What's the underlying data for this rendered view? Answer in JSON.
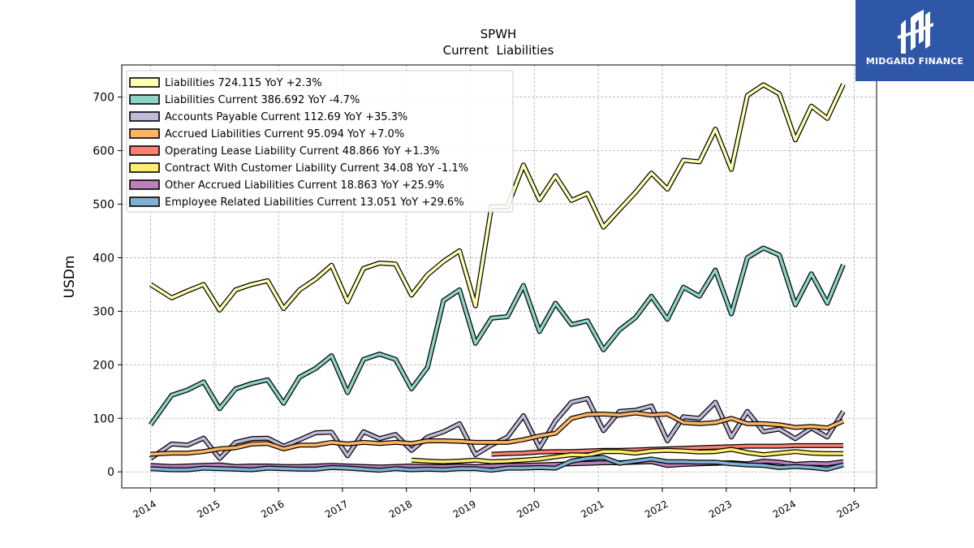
{
  "chart_data": {
    "type": "line",
    "title": "SPWH",
    "subtitle": "Current  Liabilities",
    "ylabel": "USDm",
    "xlabel": "",
    "ylim": [
      -30,
      760
    ],
    "xlim": [
      2013.55,
      2025.35
    ],
    "yticks": [
      0,
      100,
      200,
      300,
      400,
      500,
      600,
      700
    ],
    "xticks": [
      2014,
      2015,
      2016,
      2017,
      2018,
      2019,
      2020,
      2021,
      2022,
      2023,
      2024,
      2025
    ],
    "grid": true,
    "legend_position": "top-left",
    "series": [
      {
        "name": "Liabilities",
        "label": "Liabilities  724.115 YoY +2.3%",
        "color": "#ffffb3",
        "x": [
          2014.0,
          2014.33,
          2014.58,
          2014.83,
          2015.08,
          2015.33,
          2015.58,
          2015.83,
          2016.08,
          2016.33,
          2016.58,
          2016.83,
          2017.08,
          2017.33,
          2017.58,
          2017.83,
          2018.08,
          2018.33,
          2018.58,
          2018.83,
          2019.08,
          2019.33,
          2019.58,
          2019.83,
          2020.08,
          2020.33,
          2020.58,
          2020.83,
          2021.08,
          2021.33,
          2021.58,
          2021.83,
          2022.08,
          2022.33,
          2022.58,
          2022.83,
          2023.08,
          2023.33,
          2023.58,
          2023.83,
          2024.08,
          2024.33,
          2024.58,
          2024.83
        ],
        "y": [
          350,
          325,
          338,
          350,
          302,
          340,
          350,
          357,
          305,
          340,
          360,
          386,
          318,
          380,
          390,
          388,
          330,
          368,
          393,
          413,
          310,
          495,
          495,
          573,
          508,
          553,
          507,
          520,
          457,
          490,
          522,
          558,
          528,
          582,
          579,
          640,
          565,
          703,
          723,
          706,
          620,
          683,
          660,
          724
        ]
      },
      {
        "name": "Liabilities Current",
        "label": "Liabilities Current  386.692 YoY -4.7%",
        "color": "#8dd3c7",
        "x": [
          2014.0,
          2014.33,
          2014.58,
          2014.83,
          2015.08,
          2015.33,
          2015.58,
          2015.83,
          2016.08,
          2016.33,
          2016.58,
          2016.83,
          2017.08,
          2017.33,
          2017.58,
          2017.83,
          2018.08,
          2018.33,
          2018.58,
          2018.83,
          2019.08,
          2019.33,
          2019.58,
          2019.83,
          2020.08,
          2020.33,
          2020.58,
          2020.83,
          2021.08,
          2021.33,
          2021.58,
          2021.83,
          2022.08,
          2022.33,
          2022.58,
          2022.83,
          2023.08,
          2023.33,
          2023.58,
          2023.83,
          2024.08,
          2024.33,
          2024.58,
          2024.83
        ],
        "y": [
          88,
          143,
          153,
          168,
          118,
          155,
          165,
          172,
          128,
          177,
          193,
          217,
          148,
          210,
          220,
          210,
          155,
          195,
          320,
          340,
          240,
          287,
          290,
          348,
          262,
          315,
          275,
          282,
          228,
          265,
          288,
          328,
          285,
          345,
          328,
          377,
          295,
          400,
          418,
          405,
          312,
          370,
          315,
          387
        ]
      },
      {
        "name": "Accounts Payable Current",
        "label": "Accounts Payable Current  112.69 YoY +35.3%",
        "color": "#bebada",
        "x": [
          2014.0,
          2014.33,
          2014.58,
          2014.83,
          2015.08,
          2015.33,
          2015.58,
          2015.83,
          2016.08,
          2016.33,
          2016.58,
          2016.83,
          2017.08,
          2017.33,
          2017.58,
          2017.83,
          2018.08,
          2018.33,
          2018.58,
          2018.83,
          2019.08,
          2019.33,
          2019.58,
          2019.83,
          2020.08,
          2020.33,
          2020.58,
          2020.83,
          2021.08,
          2021.33,
          2021.58,
          2021.83,
          2022.08,
          2022.33,
          2022.58,
          2022.83,
          2023.08,
          2023.33,
          2023.58,
          2023.83,
          2024.08,
          2024.33,
          2024.58,
          2024.83
        ],
        "y": [
          25,
          52,
          50,
          63,
          25,
          55,
          62,
          63,
          48,
          60,
          73,
          74,
          30,
          75,
          62,
          70,
          40,
          65,
          75,
          90,
          32,
          50,
          65,
          105,
          45,
          95,
          130,
          137,
          77,
          113,
          115,
          123,
          58,
          103,
          100,
          130,
          65,
          113,
          75,
          80,
          62,
          82,
          65,
          113
        ]
      },
      {
        "name": "Accrued Liabilities Current",
        "label": "Accrued Liabilities Current  95.094 YoY +7.0%",
        "color": "#fdb462",
        "x": [
          2014.0,
          2014.33,
          2014.58,
          2014.83,
          2015.08,
          2015.33,
          2015.58,
          2015.83,
          2016.08,
          2016.33,
          2016.58,
          2016.83,
          2017.08,
          2017.33,
          2017.58,
          2017.83,
          2018.08,
          2018.33,
          2018.58,
          2018.83,
          2019.08,
          2019.33,
          2019.58,
          2019.83,
          2020.08,
          2020.33,
          2020.58,
          2020.83,
          2021.08,
          2021.33,
          2021.58,
          2021.83,
          2022.08,
          2022.33,
          2022.58,
          2022.83,
          2023.08,
          2023.33,
          2023.58,
          2023.83,
          2024.08,
          2024.33,
          2024.58,
          2024.83
        ],
        "y": [
          33,
          35,
          35,
          38,
          43,
          45,
          52,
          53,
          43,
          50,
          50,
          55,
          52,
          55,
          53,
          55,
          53,
          58,
          58,
          57,
          55,
          55,
          55,
          60,
          67,
          72,
          100,
          107,
          108,
          106,
          110,
          106,
          108,
          92,
          90,
          92,
          100,
          90,
          90,
          88,
          83,
          85,
          82,
          95
        ]
      },
      {
        "name": "Operating Lease Liability Current",
        "label": "Operating Lease Liability Current  48.866 YoY +1.3%",
        "color": "#fb8072",
        "x": [
          2019.33,
          2019.58,
          2019.83,
          2020.08,
          2020.33,
          2020.58,
          2020.83,
          2021.08,
          2021.33,
          2021.58,
          2021.83,
          2022.08,
          2022.33,
          2022.58,
          2022.83,
          2023.08,
          2023.33,
          2023.58,
          2023.83,
          2024.08,
          2024.33,
          2024.58,
          2024.83
        ],
        "y": [
          33,
          34,
          35,
          37,
          38,
          38,
          39,
          40,
          40,
          41,
          42,
          43,
          44,
          45,
          46,
          47,
          48,
          48,
          48,
          49,
          49,
          49,
          49
        ]
      },
      {
        "name": "Contract With Customer Liability Current",
        "label": "Contract With Customer Liability Current  34.08 YoY -1.1%",
        "color": "#ffed6f",
        "x": [
          2018.08,
          2018.33,
          2018.58,
          2018.83,
          2019.08,
          2019.33,
          2019.58,
          2019.83,
          2020.08,
          2020.33,
          2020.58,
          2020.83,
          2021.08,
          2021.33,
          2021.58,
          2021.83,
          2022.08,
          2022.33,
          2022.58,
          2022.83,
          2023.08,
          2023.33,
          2023.58,
          2023.83,
          2024.08,
          2024.33,
          2024.58,
          2024.83
        ],
        "y": [
          22,
          20,
          19,
          20,
          22,
          19,
          20,
          22,
          24,
          28,
          32,
          31,
          38,
          38,
          35,
          39,
          40,
          39,
          37,
          38,
          42,
          36,
          32,
          35,
          38,
          35,
          34,
          34
        ]
      },
      {
        "name": "Other Accrued Liabilities Current",
        "label": "Other Accrued Liabilities Current  18.863 YoY +25.9%",
        "color": "#bc80bd",
        "x": [
          2014.0,
          2014.33,
          2014.58,
          2014.83,
          2015.08,
          2015.33,
          2015.58,
          2015.83,
          2016.08,
          2016.33,
          2016.58,
          2016.83,
          2017.08,
          2017.33,
          2017.58,
          2017.83,
          2018.08,
          2018.33,
          2018.58,
          2018.83,
          2019.08,
          2019.33,
          2019.58,
          2019.83,
          2020.08,
          2020.33,
          2020.58,
          2020.83,
          2021.08,
          2021.33,
          2021.58,
          2021.83,
          2022.08,
          2022.33,
          2022.58,
          2022.83,
          2023.08,
          2023.33,
          2023.58,
          2023.83,
          2024.08,
          2024.33,
          2024.58,
          2024.83
        ],
        "y": [
          12,
          10,
          11,
          12,
          13,
          10,
          11,
          11,
          10,
          10,
          11,
          12,
          11,
          10,
          9,
          10,
          11,
          10,
          10,
          11,
          10,
          11,
          12,
          12,
          13,
          14,
          15,
          16,
          17,
          17,
          18,
          19,
          12,
          14,
          15,
          16,
          17,
          15,
          20,
          18,
          14,
          16,
          15,
          19
        ]
      },
      {
        "name": "Employee Related Liabilities Current",
        "label": "Employee Related Liabilities Current  13.051 YoY +29.6%",
        "color": "#80b1d3",
        "x": [
          2014.0,
          2014.33,
          2014.58,
          2014.83,
          2015.08,
          2015.33,
          2015.58,
          2015.83,
          2016.08,
          2016.33,
          2016.58,
          2016.83,
          2017.08,
          2017.33,
          2017.58,
          2017.83,
          2018.08,
          2018.33,
          2018.58,
          2018.83,
          2019.08,
          2019.33,
          2019.58,
          2019.83,
          2020.08,
          2020.33,
          2020.58,
          2020.83,
          2021.08,
          2021.33,
          2021.58,
          2021.83,
          2022.08,
          2022.33,
          2022.58,
          2022.83,
          2023.08,
          2023.33,
          2023.58,
          2023.83,
          2024.08,
          2024.33,
          2024.58,
          2024.83
        ],
        "y": [
          6,
          4,
          4,
          7,
          6,
          5,
          4,
          7,
          6,
          5,
          5,
          8,
          7,
          5,
          3,
          6,
          4,
          5,
          4,
          6,
          6,
          3,
          7,
          7,
          8,
          7,
          20,
          25,
          27,
          16,
          20,
          24,
          19,
          19,
          18,
          18,
          15,
          13,
          12,
          8,
          10,
          8,
          5,
          13
        ]
      }
    ]
  },
  "logo": {
    "text": "MIDGARD FINANCE"
  }
}
